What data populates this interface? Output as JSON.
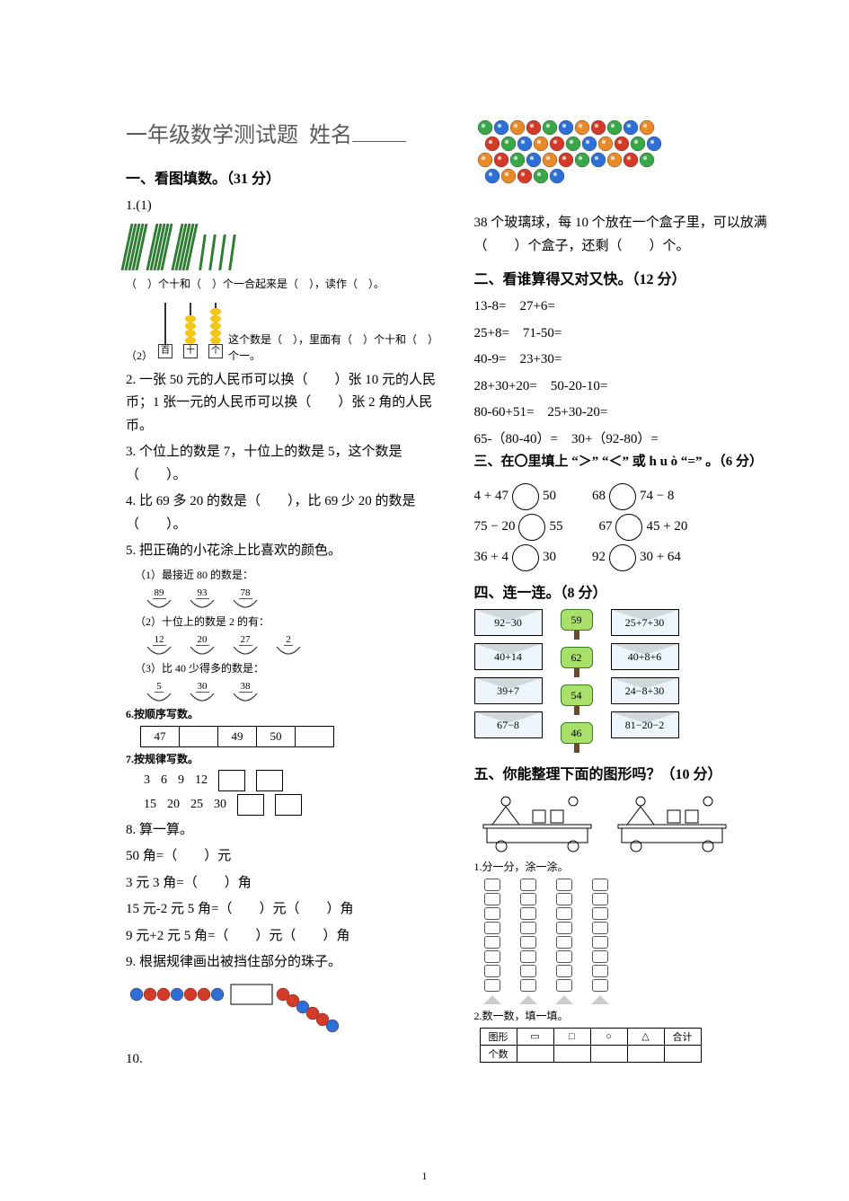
{
  "title_main": "一年级数学测试题",
  "title_name_label": "姓名",
  "page_number": "1",
  "colors": {
    "title": "#5a5a5a",
    "stick_green": "#2e7d32",
    "bead_yellow": "#f5c518",
    "bead_red": "#d23b2a",
    "bead_blue": "#2e6fd6",
    "bead_green": "#3aa64a",
    "bead_orange": "#e88a2a",
    "envelope_bg": "#eef6fb",
    "sign_bg": "#a8e06a",
    "sign_border": "#3a7a1f",
    "sign_pole": "#6b4a2b"
  },
  "s1": {
    "head": "一、看图填数。（31 分）",
    "q1_label": "1.(1)",
    "q1_tally": {
      "bundles": 3,
      "loose": 4,
      "sticks_per_bundle": 5
    },
    "q1_text": "（　）个十和（　）个一合起来是（　），读作（　）。",
    "q1b_label": "（2）",
    "q1b_abacus": {
      "columns": [
        {
          "label": "百",
          "beads": 0
        },
        {
          "label": "十",
          "beads": 4
        },
        {
          "label": "个",
          "beads": 5
        }
      ]
    },
    "q1b_text": "这个数是（　），里面有（　）个十和（　）个一。",
    "q2": "2. 一张 50 元的人民币可以换（　　）张 10 元的人民币；1 张一元的人民币可以换（　　）张 2 角的人民币。",
    "q3": "3. 个位上的数是 7，十位上的数是 5，这个数是（　　）。",
    "q4": "4. 比 69 多 20 的数是（　　），比 69 少 20 的数是（　　）。",
    "q5_head": "5. 把正确的小花涂上比喜欢的颜色。",
    "q5_rows": [
      {
        "label": "（1）最接近 80 的数是：",
        "vals": [
          "89",
          "93",
          "78"
        ]
      },
      {
        "label": "（2）十位上的数是 2 的有：",
        "vals": [
          "12",
          "20",
          "27",
          "2"
        ]
      },
      {
        "label": "（3）比 40 少得多的数是：",
        "vals": [
          "5",
          "30",
          "38"
        ]
      }
    ],
    "q6_head": "6.按顺序写数。",
    "q6_cells": [
      "47",
      "",
      "49",
      "50",
      ""
    ],
    "q7_head": "7.按规律写数。",
    "q7_row1": [
      "3",
      "6",
      "9",
      "12"
    ],
    "q7_row2": [
      "15",
      "20",
      "25",
      "30"
    ],
    "q8_head": "8. 算一算。",
    "q8_lines": [
      "50 角=（　　）元",
      "3 元 3 角=（　　）角",
      "15 元-2 元 5 角=（　　）元（　　）角",
      "9 元+2 元 5 角=（　　）元（　　）角"
    ],
    "q9_head": "9. 根据规律画出被挡住部分的珠子。",
    "q9_beads": {
      "left": [
        {
          "c": "bead_blue"
        },
        {
          "c": "bead_red"
        },
        {
          "c": "bead_red"
        },
        {
          "c": "bead_blue"
        },
        {
          "c": "bead_red"
        },
        {
          "c": "bead_red"
        },
        {
          "c": "bead_blue"
        }
      ],
      "right": [
        {
          "c": "bead_red"
        },
        {
          "c": "bead_red"
        },
        {
          "c": "bead_blue"
        },
        {
          "c": "bead_red"
        },
        {
          "c": "bead_red"
        },
        {
          "c": "bead_blue"
        }
      ]
    },
    "q10_label": "10.",
    "q10_text": "38 个玻璃球，每 10 个放在一个盒子里，可以放满（　　）个盒子，还剩（　　）个。",
    "q10_marbles": {
      "count": 38,
      "palette": [
        "bead_green",
        "bead_blue",
        "bead_orange",
        "bead_red"
      ]
    }
  },
  "s2": {
    "head": "二、看谁算得又对又快。（12 分）",
    "lines": [
      "13-8=　27+6=",
      "25+8=　71-50=",
      "40-9=　23+30=",
      "28+30+20=　50-20-10=",
      "80-60+51=　25+30-20=",
      "65-（80-40）=　30+（92-80）="
    ]
  },
  "s3": {
    "head_inline": "三、在〇里填上 “＞” “＜” 或 h u ò “=” 。（6 分）",
    "rows": [
      [
        {
          "l": "4 + 47",
          "r": "50"
        },
        {
          "l": "68",
          "r": "74 − 8"
        }
      ],
      [
        {
          "l": "75 − 20",
          "r": "55"
        },
        {
          "l": "67",
          "r": "45 + 20"
        }
      ],
      [
        {
          "l": "36 + 4",
          "r": "30"
        },
        {
          "l": "92",
          "r": "30 + 64"
        }
      ]
    ]
  },
  "s4": {
    "head": "四、连一连。（8 分）",
    "left": [
      "92−30",
      "40+14",
      "39+7",
      "67−8"
    ],
    "mid": [
      "59",
      "62",
      "54",
      "46"
    ],
    "right": [
      "25+7+30",
      "40+8+6",
      "24−8+30",
      "81−20−2"
    ]
  },
  "s5": {
    "head": "五、你能整理下面的图形吗？（10 分）",
    "sub1": "1.分一分，涂一涂。",
    "sub2": "2.数一数，填一填。",
    "table_head": "图形",
    "table_count": "个数",
    "table_total": "合计",
    "shape_icons": [
      "▭",
      "□",
      "○",
      "△"
    ],
    "sort_slots": 8
  }
}
